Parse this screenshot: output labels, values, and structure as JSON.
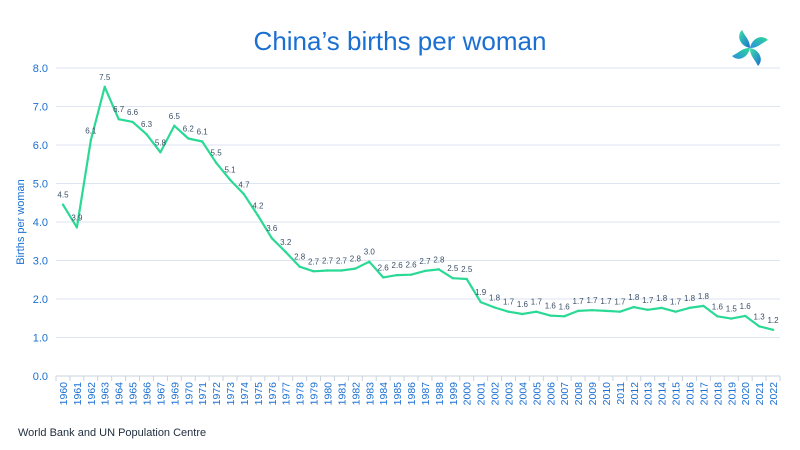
{
  "chart_data": {
    "type": "line",
    "title": "China’s births per woman",
    "ylabel": "Births per woman",
    "xlabel": "",
    "ylim": [
      0,
      8
    ],
    "yticks": [
      "0.0",
      "1.0",
      "2.0",
      "3.0",
      "4.0",
      "5.0",
      "6.0",
      "7.0",
      "8.0"
    ],
    "grid": true,
    "x": [
      "1960",
      "1961",
      "1962",
      "1963",
      "1964",
      "1965",
      "1966",
      "1967",
      "1969",
      "1970",
      "1971",
      "1972",
      "1973",
      "1974",
      "1975",
      "1976",
      "1977",
      "1978",
      "1979",
      "1980",
      "1981",
      "1982",
      "1983",
      "1984",
      "1985",
      "1986",
      "1987",
      "1988",
      "1999",
      "2000",
      "2001",
      "2002",
      "2003",
      "2004",
      "2005",
      "2006",
      "2007",
      "2008",
      "2009",
      "2010",
      "2011",
      "2012",
      "2013",
      "2014",
      "2015",
      "2016",
      "2017",
      "2018",
      "2019",
      "2020",
      "2021",
      "2022"
    ],
    "y": [
      4.45,
      3.86,
      6.12,
      7.51,
      6.67,
      6.6,
      6.28,
      5.81,
      6.5,
      6.17,
      6.09,
      5.54,
      5.1,
      4.72,
      4.17,
      3.58,
      3.22,
      2.84,
      2.72,
      2.74,
      2.74,
      2.79,
      2.97,
      2.56,
      2.62,
      2.63,
      2.73,
      2.77,
      2.54,
      2.52,
      1.92,
      1.78,
      1.67,
      1.61,
      1.67,
      1.57,
      1.55,
      1.69,
      1.71,
      1.69,
      1.67,
      1.79,
      1.72,
      1.77,
      1.67,
      1.77,
      1.82,
      1.55,
      1.49,
      1.56,
      1.29,
      1.2
    ],
    "data_labels": [
      "4.5",
      "3.9",
      "6.1",
      "7.5",
      "6.7",
      "6.6",
      "6.3",
      "5.8",
      "6.5",
      "6.2",
      "6.1",
      "5.5",
      "5.1",
      "4.7",
      "4.2",
      "3.6",
      "3.2",
      "2.8",
      "2.7",
      "2.7",
      "2.7",
      "2.8",
      "3.0",
      "2.6",
      "2.6",
      "2.6",
      "2.7",
      "2.8",
      "2.5",
      "2.5",
      "1.9",
      "1.8",
      "1.7",
      "1.6",
      "1.7",
      "1.6",
      "1.6",
      "1.7",
      "1.7",
      "1.7",
      "1.7",
      "1.8",
      "1.7",
      "1.8",
      "1.7",
      "1.8",
      "1.8",
      "1.6",
      "1.5",
      "1.6",
      "1.3",
      "1.2"
    ],
    "line_color": "#2bd996",
    "axis_text_color": "#1a6fd1",
    "grid_color": "#dde6f0"
  },
  "source": "World Bank and UN Population  Centre",
  "logo_icon": "pinwheel-logo-icon"
}
